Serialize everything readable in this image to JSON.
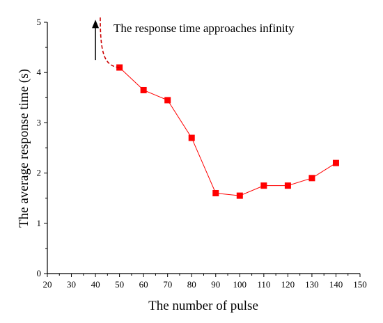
{
  "chart_data": {
    "type": "line",
    "xlabel": "The number of pulse",
    "ylabel": "The average response time (s)",
    "xlim": [
      20,
      150
    ],
    "ylim": [
      0,
      5
    ],
    "x_ticks": [
      "20",
      "30",
      "40",
      "50",
      "60",
      "70",
      "80",
      "90",
      "100",
      "110",
      "120",
      "130",
      "140",
      "150"
    ],
    "y_ticks": [
      "0",
      "1",
      "2",
      "3",
      "4",
      "5"
    ],
    "grid": false,
    "series": [
      {
        "x": [
          50,
          60,
          70,
          80,
          90,
          100,
          110,
          120,
          130,
          140
        ],
        "y": [
          4.1,
          3.65,
          3.45,
          2.7,
          1.6,
          1.55,
          1.75,
          1.75,
          1.9,
          2.2
        ],
        "color": "#ff0000",
        "marker": "square"
      }
    ],
    "asymptote": {
      "note": "dashed curve rising toward infinity near x = 40",
      "color": "#cc0000",
      "from": [
        50,
        4.1
      ],
      "to": [
        42,
        5.1
      ]
    },
    "annotation": {
      "text": "The response time approaches infinity",
      "arrow_x": 40,
      "arrow_from_y": 4.25,
      "arrow_to_y": 5.05
    }
  }
}
